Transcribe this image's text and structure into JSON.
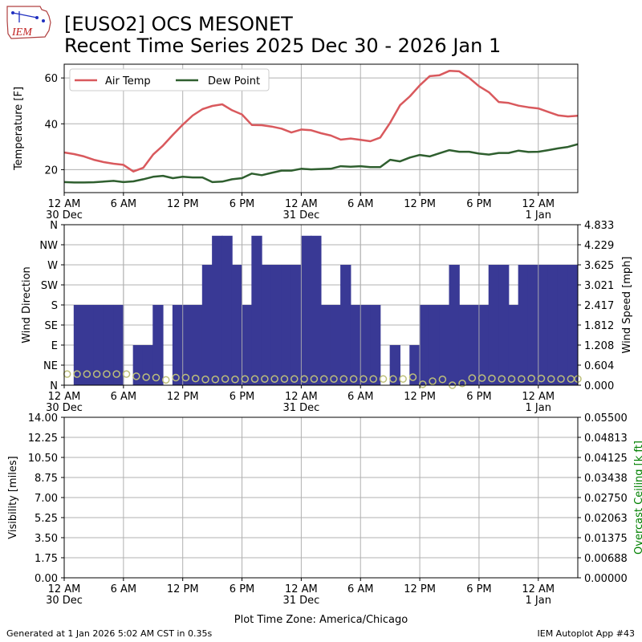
{
  "header": {
    "title_line1": "[EUSO2] OCS MESONET",
    "title_line2": "Recent Time Series 2025 Dec 30 - 2026 Jan 1",
    "logo_text": "IEM"
  },
  "footer": {
    "generated": "Generated at 1 Jan 2026 5:02 AM CST in 0.35s",
    "app": "IEM Autoplot App #43",
    "timezone": "Plot Time Zone: America/Chicago"
  },
  "colors": {
    "air_temp": "#d9595d",
    "dew_point": "#2f5f2f",
    "wind_bar": "#393995",
    "wind_dir_marker": "#bdbf7a",
    "ceiling_label": "#008000",
    "grid": "#b0b0b0"
  },
  "time_axis": {
    "range_hours": [
      0,
      52
    ],
    "ticks": [
      {
        "h": 0,
        "label": "12 AM",
        "sub": "30 Dec"
      },
      {
        "h": 6,
        "label": "6 AM",
        "sub": ""
      },
      {
        "h": 12,
        "label": "12 PM",
        "sub": ""
      },
      {
        "h": 18,
        "label": "6 PM",
        "sub": ""
      },
      {
        "h": 24,
        "label": "12 AM",
        "sub": "31 Dec"
      },
      {
        "h": 30,
        "label": "6 AM",
        "sub": ""
      },
      {
        "h": 36,
        "label": "12 PM",
        "sub": ""
      },
      {
        "h": 42,
        "label": "6 PM",
        "sub": ""
      },
      {
        "h": 48,
        "label": "12 AM",
        "sub": "1 Jan"
      }
    ]
  },
  "chart_data": [
    {
      "type": "line",
      "ylabel": "Temperature [F]",
      "ylim": [
        10,
        66
      ],
      "yticks": [
        20,
        40,
        60
      ],
      "legend": "upper-left",
      "x": [
        0,
        1,
        2,
        3,
        4,
        5,
        6,
        7,
        8,
        9,
        10,
        11,
        12,
        13,
        14,
        15,
        16,
        17,
        18,
        19,
        20,
        21,
        22,
        23,
        24,
        25,
        26,
        27,
        28,
        29,
        30,
        31,
        32,
        33,
        34,
        35,
        36,
        37,
        38,
        39,
        40,
        41,
        42,
        43,
        44,
        45,
        46,
        47,
        48,
        49,
        50,
        51,
        52
      ],
      "series": [
        {
          "name": "Air Temp",
          "values": [
            27.5,
            26.8,
            25.8,
            24.3,
            23.3,
            22.6,
            22.1,
            19.2,
            20.8,
            26.6,
            30.5,
            35.2,
            39.6,
            43.6,
            46.4,
            47.8,
            48.5,
            45.9,
            44.1,
            39.5,
            39.4,
            38.8,
            37.9,
            36.2,
            37.5,
            37.2,
            35.9,
            34.9,
            33.1,
            33.6,
            33.0,
            32.4,
            34.0,
            40.5,
            48.1,
            52.0,
            56.8,
            60.8,
            61.2,
            63.1,
            62.9,
            60.0,
            56.4,
            53.8,
            49.5,
            49.1,
            47.9,
            47.2,
            46.7,
            45.2,
            43.7,
            43.2,
            43.5
          ]
        },
        {
          "name": "Dew Point",
          "values": [
            14.6,
            14.4,
            14.4,
            14.5,
            14.8,
            15.1,
            14.6,
            14.9,
            15.8,
            16.9,
            17.3,
            16.3,
            16.9,
            16.6,
            16.6,
            14.6,
            14.8,
            15.8,
            16.3,
            18.3,
            17.6,
            18.6,
            19.6,
            19.6,
            20.4,
            20.1,
            20.3,
            20.4,
            21.5,
            21.3,
            21.5,
            21.1,
            21.1,
            24.3,
            23.6,
            25.3,
            26.4,
            25.8,
            27.2,
            28.5,
            27.8,
            27.8,
            27.0,
            26.6,
            27.3,
            27.3,
            28.3,
            27.7,
            27.8,
            28.5,
            29.3,
            29.9,
            31.1
          ]
        }
      ]
    },
    {
      "type": "bar",
      "ylabel": "Wind Direction",
      "y2label": "Wind Speed [mph]",
      "dir_labels": [
        "N",
        "NE",
        "E",
        "SE",
        "S",
        "SW",
        "W",
        "NW",
        "N"
      ],
      "speed_ticks": [
        "0.000",
        "0.604",
        "1.208",
        "1.812",
        "2.417",
        "3.021",
        "3.625",
        "4.229",
        "4.833"
      ],
      "speed_max": 4.833,
      "bar_width_hours": 1,
      "speed_bars": [
        {
          "x": 0,
          "y": 0
        },
        {
          "x": 1,
          "y": 2.417
        },
        {
          "x": 2,
          "y": 2.417
        },
        {
          "x": 3,
          "y": 2.417
        },
        {
          "x": 4,
          "y": 2.417
        },
        {
          "x": 5,
          "y": 2.417
        },
        {
          "x": 6,
          "y": 0
        },
        {
          "x": 7,
          "y": 1.208
        },
        {
          "x": 8,
          "y": 1.208
        },
        {
          "x": 9,
          "y": 2.417
        },
        {
          "x": 10,
          "y": 0
        },
        {
          "x": 11,
          "y": 2.417
        },
        {
          "x": 12,
          "y": 2.417
        },
        {
          "x": 13,
          "y": 2.417
        },
        {
          "x": 14,
          "y": 3.625
        },
        {
          "x": 15,
          "y": 4.5
        },
        {
          "x": 16,
          "y": 4.5
        },
        {
          "x": 17,
          "y": 3.625
        },
        {
          "x": 18,
          "y": 2.417
        },
        {
          "x": 19,
          "y": 4.5
        },
        {
          "x": 20,
          "y": 3.625
        },
        {
          "x": 21,
          "y": 3.625
        },
        {
          "x": 22,
          "y": 3.625
        },
        {
          "x": 23,
          "y": 3.625
        },
        {
          "x": 24,
          "y": 4.5
        },
        {
          "x": 25,
          "y": 4.5
        },
        {
          "x": 26,
          "y": 2.417
        },
        {
          "x": 27,
          "y": 2.417
        },
        {
          "x": 28,
          "y": 3.625
        },
        {
          "x": 29,
          "y": 2.417
        },
        {
          "x": 30,
          "y": 2.417
        },
        {
          "x": 31,
          "y": 2.417
        },
        {
          "x": 32,
          "y": 0
        },
        {
          "x": 33,
          "y": 1.208
        },
        {
          "x": 34,
          "y": 0
        },
        {
          "x": 35,
          "y": 1.208
        },
        {
          "x": 36,
          "y": 2.417
        },
        {
          "x": 37,
          "y": 2.417
        },
        {
          "x": 38,
          "y": 2.417
        },
        {
          "x": 39,
          "y": 3.625
        },
        {
          "x": 40,
          "y": 2.417
        },
        {
          "x": 41,
          "y": 2.417
        },
        {
          "x": 42,
          "y": 2.417
        },
        {
          "x": 43,
          "y": 3.625
        },
        {
          "x": 44,
          "y": 3.625
        },
        {
          "x": 45,
          "y": 2.417
        },
        {
          "x": 46,
          "y": 3.625
        },
        {
          "x": 47,
          "y": 3.625
        },
        {
          "x": 48,
          "y": 3.625
        },
        {
          "x": 49,
          "y": 3.625
        },
        {
          "x": 50,
          "y": 3.625
        },
        {
          "x": 51,
          "y": 3.625
        }
      ],
      "direction_points": [
        {
          "x": 0.3,
          "dir": 25
        },
        {
          "x": 1.3,
          "dir": 25
        },
        {
          "x": 2.3,
          "dir": 25
        },
        {
          "x": 3.3,
          "dir": 25
        },
        {
          "x": 4.3,
          "dir": 25
        },
        {
          "x": 5.3,
          "dir": 25
        },
        {
          "x": 6.3,
          "dir": 25
        },
        {
          "x": 7.3,
          "dir": 20
        },
        {
          "x": 8.3,
          "dir": 18
        },
        {
          "x": 9.3,
          "dir": 17
        },
        {
          "x": 10.3,
          "dir": 12
        },
        {
          "x": 11.3,
          "dir": 17
        },
        {
          "x": 12.3,
          "dir": 17
        },
        {
          "x": 13.3,
          "dir": 15
        },
        {
          "x": 14.3,
          "dir": 13
        },
        {
          "x": 15.3,
          "dir": 13
        },
        {
          "x": 16.3,
          "dir": 14
        },
        {
          "x": 17.3,
          "dir": 13
        },
        {
          "x": 18.3,
          "dir": 14
        },
        {
          "x": 19.3,
          "dir": 14
        },
        {
          "x": 20.3,
          "dir": 14
        },
        {
          "x": 21.3,
          "dir": 14
        },
        {
          "x": 22.3,
          "dir": 14
        },
        {
          "x": 23.3,
          "dir": 14
        },
        {
          "x": 24.3,
          "dir": 14
        },
        {
          "x": 25.3,
          "dir": 14
        },
        {
          "x": 26.3,
          "dir": 14
        },
        {
          "x": 27.3,
          "dir": 14
        },
        {
          "x": 28.3,
          "dir": 14
        },
        {
          "x": 29.3,
          "dir": 14
        },
        {
          "x": 30.3,
          "dir": 14
        },
        {
          "x": 31.3,
          "dir": 14
        },
        {
          "x": 32.3,
          "dir": 14
        },
        {
          "x": 33.3,
          "dir": 14
        },
        {
          "x": 34.3,
          "dir": 14
        },
        {
          "x": 35.3,
          "dir": 18
        },
        {
          "x": 36.3,
          "dir": 2
        },
        {
          "x": 37.3,
          "dir": 9
        },
        {
          "x": 38.3,
          "dir": 13
        },
        {
          "x": 39.3,
          "dir": 0
        },
        {
          "x": 40.3,
          "dir": 4
        },
        {
          "x": 41.3,
          "dir": 16
        },
        {
          "x": 42.3,
          "dir": 16
        },
        {
          "x": 43.3,
          "dir": 15
        },
        {
          "x": 44.3,
          "dir": 14
        },
        {
          "x": 45.3,
          "dir": 14
        },
        {
          "x": 46.3,
          "dir": 14
        },
        {
          "x": 47.3,
          "dir": 15
        },
        {
          "x": 48.3,
          "dir": 15
        },
        {
          "x": 49.3,
          "dir": 14
        },
        {
          "x": 50.3,
          "dir": 14
        },
        {
          "x": 51.3,
          "dir": 14
        },
        {
          "x": 52.0,
          "dir": 14
        }
      ]
    },
    {
      "type": "line",
      "ylabel": "Visibility [miles]",
      "y2label": "Overcast Ceiling [k ft]",
      "yticks": [
        "0.00",
        "1.75",
        "3.50",
        "5.25",
        "7.00",
        "8.75",
        "10.50",
        "12.25",
        "14.00"
      ],
      "y2ticks": [
        "0.00000",
        "0.00688",
        "0.01375",
        "0.02063",
        "0.02750",
        "0.03438",
        "0.04125",
        "0.04813",
        "0.05500"
      ],
      "ylim": [
        0,
        14
      ],
      "y2lim": [
        0,
        0.055
      ],
      "series": []
    }
  ]
}
